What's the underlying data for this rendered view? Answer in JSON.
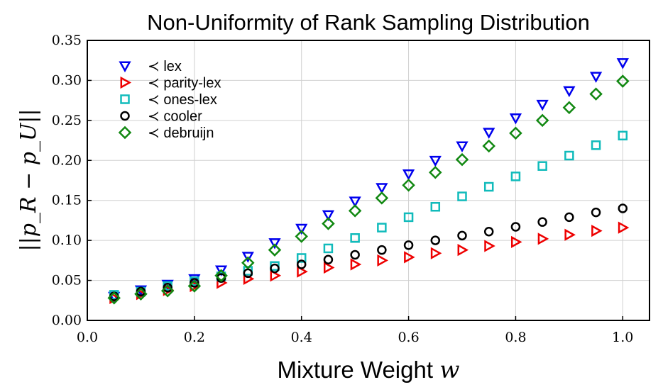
{
  "chart_data": {
    "type": "scatter",
    "title": "Non-Uniformity of Rank Sampling Distribution",
    "xlabel": "Mixture Weight",
    "xlabel_symbol": "w",
    "ylabel": "||p_R − p_U||",
    "xlim": [
      0.0,
      1.05
    ],
    "ylim": [
      0.0,
      0.35
    ],
    "xticks": [
      "0.0",
      "0.2",
      "0.4",
      "0.6",
      "0.8",
      "1.0"
    ],
    "yticks": [
      "0.00",
      "0.05",
      "0.10",
      "0.15",
      "0.20",
      "0.25",
      "0.30",
      "0.35"
    ],
    "grid": true,
    "legend_position": "top-left",
    "x": [
      0.05,
      0.1,
      0.15,
      0.2,
      0.25,
      0.3,
      0.35,
      0.4,
      0.45,
      0.5,
      0.55,
      0.6,
      0.65,
      0.7,
      0.75,
      0.8,
      0.85,
      0.9,
      0.95,
      1.0
    ],
    "series": [
      {
        "name": "≺ lex",
        "marker": "triangle-down",
        "color": "#0000ee",
        "values": [
          0.03,
          0.038,
          0.045,
          0.052,
          0.063,
          0.08,
          0.097,
          0.115,
          0.132,
          0.149,
          0.166,
          0.183,
          0.2,
          0.218,
          0.235,
          0.253,
          0.27,
          0.287,
          0.305,
          0.322
        ]
      },
      {
        "name": "≺ parity-lex",
        "marker": "triangle-right",
        "color": "#ee0000",
        "values": [
          0.028,
          0.033,
          0.038,
          0.043,
          0.047,
          0.052,
          0.056,
          0.061,
          0.066,
          0.07,
          0.075,
          0.079,
          0.084,
          0.088,
          0.093,
          0.098,
          0.102,
          0.107,
          0.112,
          0.116
        ]
      },
      {
        "name": "≺ ones-lex",
        "marker": "square",
        "color": "#11bbbb",
        "values": [
          0.032,
          0.036,
          0.043,
          0.049,
          0.055,
          0.062,
          0.068,
          0.078,
          0.09,
          0.103,
          0.116,
          0.129,
          0.142,
          0.155,
          0.167,
          0.18,
          0.193,
          0.206,
          0.219,
          0.231
        ]
      },
      {
        "name": "≺ cooler",
        "marker": "circle",
        "color": "#000000",
        "values": [
          0.03,
          0.036,
          0.041,
          0.047,
          0.053,
          0.059,
          0.065,
          0.07,
          0.076,
          0.082,
          0.088,
          0.094,
          0.1,
          0.106,
          0.111,
          0.117,
          0.123,
          0.129,
          0.135,
          0.14
        ]
      },
      {
        "name": "≺ debruijn",
        "marker": "diamond",
        "color": "#118811",
        "values": [
          0.028,
          0.033,
          0.037,
          0.043,
          0.056,
          0.072,
          0.088,
          0.105,
          0.121,
          0.137,
          0.153,
          0.169,
          0.185,
          0.201,
          0.218,
          0.234,
          0.25,
          0.266,
          0.283,
          0.299
        ]
      }
    ]
  }
}
